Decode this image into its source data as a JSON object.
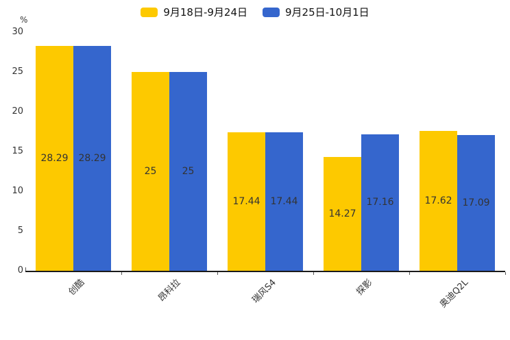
{
  "chart_data": {
    "type": "bar",
    "title": "",
    "unit_label": "%",
    "categories": [
      "创酷",
      "昂科拉",
      "瑞风S4",
      "探影",
      "奥迪Q2L"
    ],
    "series": [
      {
        "name": "9月18日-9月24日",
        "color": "#FDC900",
        "values": [
          28.29,
          25,
          17.44,
          14.27,
          17.62
        ],
        "labels": [
          "28.29",
          "25",
          "17.44",
          "14.27",
          "17.62"
        ]
      },
      {
        "name": "9月25日-10月1日",
        "color": "#3566CD",
        "values": [
          28.29,
          25,
          17.44,
          17.16,
          17.09
        ],
        "labels": [
          "28.29",
          "25",
          "17.44",
          "17.16",
          "17.09"
        ]
      }
    ],
    "ylim": [
      0,
      30
    ],
    "yticks": [
      30,
      25,
      20,
      15,
      10,
      5,
      0
    ],
    "grid": false,
    "legend_position": "top",
    "value_label_position": "inside-center",
    "xlabel": "",
    "ylabel": "%"
  },
  "colors": {
    "background": "#ffffff",
    "axis_line": "#1a1a1a",
    "tick_mark": "#555555",
    "label_text": "#333333"
  }
}
